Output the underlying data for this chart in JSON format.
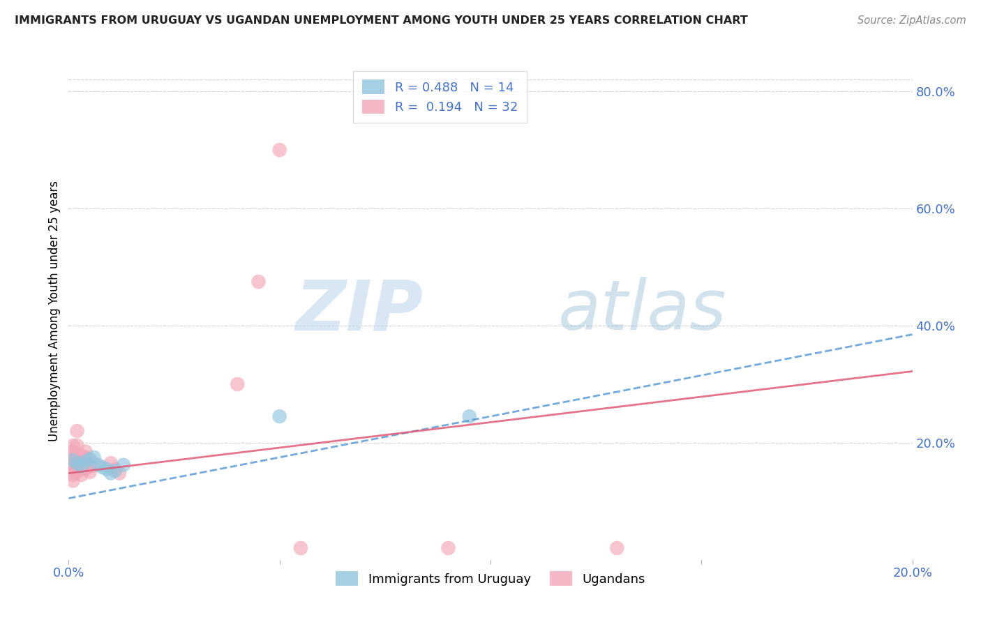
{
  "title": "IMMIGRANTS FROM URUGUAY VS UGANDAN UNEMPLOYMENT AMONG YOUTH UNDER 25 YEARS CORRELATION CHART",
  "source": "Source: ZipAtlas.com",
  "xlabel_color": "#4472c4",
  "ylabel": "Unemployment Among Youth under 25 years",
  "xlim": [
    0.0,
    0.2
  ],
  "ylim": [
    0.0,
    0.85
  ],
  "right_yticks": [
    0.2,
    0.4,
    0.6,
    0.8
  ],
  "right_yticklabels": [
    "20.0%",
    "40.0%",
    "60.0%",
    "80.0%"
  ],
  "xticks": [
    0.0,
    0.05,
    0.1,
    0.15,
    0.2
  ],
  "xticklabels": [
    "0.0%",
    "",
    "",
    "",
    "20.0%"
  ],
  "watermark_zip": "ZIP",
  "watermark_atlas": "atlas",
  "blue_color": "#92c5de",
  "pink_color": "#f4a6b8",
  "blue_line_color": "#5b9bd5",
  "pink_line_color": "#e05a78",
  "blue_scatter": [
    [
      0.001,
      0.17
    ],
    [
      0.002,
      0.165
    ],
    [
      0.003,
      0.16
    ],
    [
      0.004,
      0.168
    ],
    [
      0.005,
      0.172
    ],
    [
      0.006,
      0.175
    ],
    [
      0.007,
      0.162
    ],
    [
      0.008,
      0.158
    ],
    [
      0.009,
      0.155
    ],
    [
      0.01,
      0.148
    ],
    [
      0.011,
      0.152
    ],
    [
      0.013,
      0.162
    ],
    [
      0.05,
      0.245
    ],
    [
      0.095,
      0.245
    ]
  ],
  "pink_scatter": [
    [
      0.001,
      0.17
    ],
    [
      0.001,
      0.175
    ],
    [
      0.001,
      0.165
    ],
    [
      0.001,
      0.155
    ],
    [
      0.001,
      0.145
    ],
    [
      0.001,
      0.135
    ],
    [
      0.001,
      0.185
    ],
    [
      0.001,
      0.195
    ],
    [
      0.002,
      0.17
    ],
    [
      0.002,
      0.16
    ],
    [
      0.002,
      0.15
    ],
    [
      0.002,
      0.195
    ],
    [
      0.002,
      0.22
    ],
    [
      0.003,
      0.155
    ],
    [
      0.003,
      0.168
    ],
    [
      0.003,
      0.178
    ],
    [
      0.003,
      0.145
    ],
    [
      0.004,
      0.175
    ],
    [
      0.004,
      0.155
    ],
    [
      0.004,
      0.185
    ],
    [
      0.005,
      0.16
    ],
    [
      0.005,
      0.15
    ],
    [
      0.006,
      0.165
    ],
    [
      0.04,
      0.3
    ],
    [
      0.045,
      0.475
    ],
    [
      0.05,
      0.7
    ],
    [
      0.055,
      0.02
    ],
    [
      0.09,
      0.02
    ],
    [
      0.13,
      0.02
    ],
    [
      0.01,
      0.165
    ],
    [
      0.011,
      0.155
    ],
    [
      0.012,
      0.148
    ]
  ],
  "blue_trendline": [
    [
      0.0,
      0.105
    ],
    [
      0.2,
      0.385
    ]
  ],
  "pink_trendline": [
    [
      0.0,
      0.148
    ],
    [
      0.2,
      0.322
    ]
  ],
  "background_color": "#ffffff",
  "grid_color": "#d0d0d0"
}
